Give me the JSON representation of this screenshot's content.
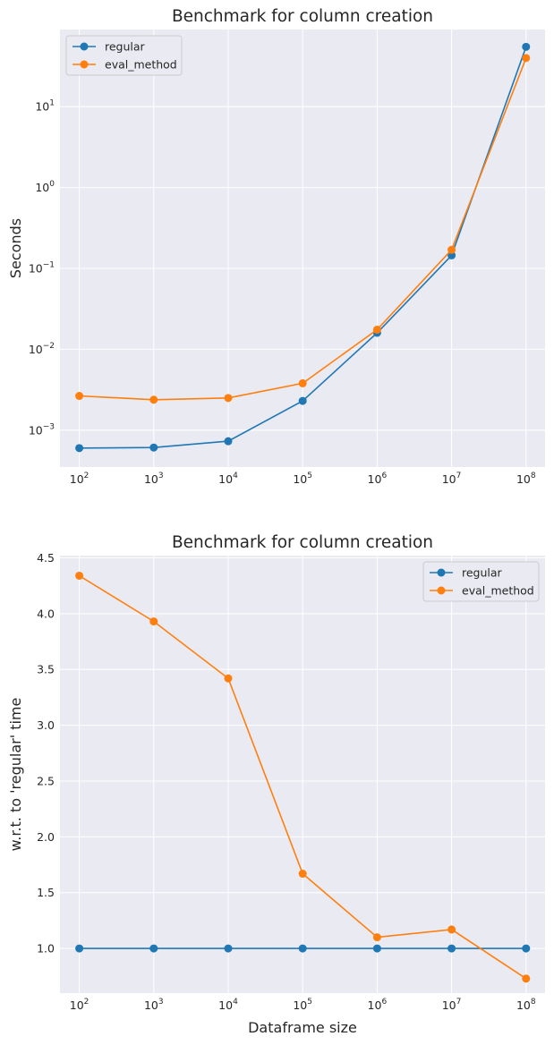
{
  "chart_data": [
    {
      "type": "line",
      "title": "Benchmark for column creation",
      "xlabel": "",
      "ylabel": "Seconds",
      "xscale": "log",
      "yscale": "log",
      "x": [
        100,
        1000,
        10000,
        100000,
        1000000,
        10000000,
        100000000
      ],
      "xticklabels": [
        "10^2",
        "10^3",
        "10^4",
        "10^5",
        "10^6",
        "10^7",
        "10^8"
      ],
      "yticks": [
        0.001,
        0.01,
        0.1,
        1,
        10
      ],
      "yticklabels": [
        "10^-3",
        "10^-2",
        "10^-1",
        "10^0",
        "10^1"
      ],
      "ylim": [
        0.00035,
        90
      ],
      "grid": true,
      "legend": "upper-left",
      "series": [
        {
          "name": "regular",
          "color": "#1f77b4",
          "values": [
            0.0006,
            0.00061,
            0.00073,
            0.0023,
            0.016,
            0.145,
            55.0
          ]
        },
        {
          "name": "eval_method",
          "color": "#ff7f0e",
          "values": [
            0.00265,
            0.00238,
            0.0025,
            0.0038,
            0.0175,
            0.17,
            40.0
          ]
        }
      ]
    },
    {
      "type": "line",
      "title": "Benchmark for column creation",
      "xlabel": "Dataframe size",
      "ylabel": "w.r.t. to 'regular' time",
      "xscale": "log",
      "yscale": "linear",
      "x": [
        100,
        1000,
        10000,
        100000,
        1000000,
        10000000,
        100000000
      ],
      "xticklabels": [
        "10^2",
        "10^3",
        "10^4",
        "10^5",
        "10^6",
        "10^7",
        "10^8"
      ],
      "yticks": [
        1.0,
        1.5,
        2.0,
        2.5,
        3.0,
        3.5,
        4.0,
        4.5
      ],
      "yticklabels": [
        "1.0",
        "1.5",
        "2.0",
        "2.5",
        "3.0",
        "3.5",
        "4.0",
        "4.5"
      ],
      "ylim": [
        0.6,
        4.52
      ],
      "grid": true,
      "legend": "upper-right",
      "series": [
        {
          "name": "regular",
          "color": "#1f77b4",
          "values": [
            1.0,
            1.0,
            1.0,
            1.0,
            1.0,
            1.0,
            1.0
          ]
        },
        {
          "name": "eval_method",
          "color": "#ff7f0e",
          "values": [
            4.34,
            3.93,
            3.42,
            1.67,
            1.1,
            1.17,
            0.73
          ]
        }
      ]
    }
  ]
}
